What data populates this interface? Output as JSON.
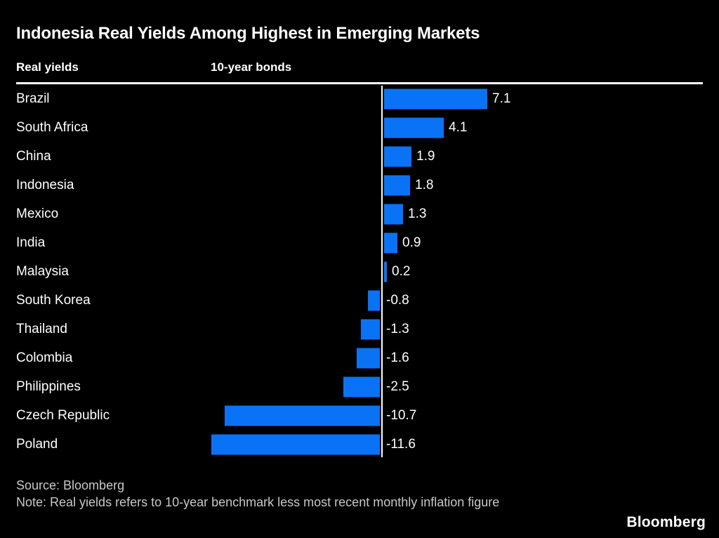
{
  "page": {
    "title": "Indonesia Real Yields Among Highest in Emerging Markets",
    "subtitle_left": "Real yields",
    "subtitle_right": "10-year bonds"
  },
  "chart_data": {
    "type": "bar",
    "orientation": "horizontal",
    "title": "Indonesia Real Yields Among Highest in Emerging Markets",
    "categories": [
      "Brazil",
      "South Africa",
      "China",
      "Indonesia",
      "Mexico",
      "India",
      "Malaysia",
      "South Korea",
      "Thailand",
      "Colombia",
      "Philippines",
      "Czech Republic",
      "Poland"
    ],
    "values": [
      7.1,
      4.1,
      1.9,
      1.8,
      1.3,
      0.9,
      0.2,
      -0.8,
      -1.3,
      -1.6,
      -2.5,
      -10.7,
      -11.6
    ],
    "value_labels": [
      "7.1",
      "4.1",
      "1.9",
      "1.8",
      "1.3",
      "0.9",
      "0.2",
      "-0.8",
      "-1.3",
      "-1.6",
      "-2.5",
      "-10.7",
      "-11.6"
    ],
    "xlim": [
      -11.6,
      7.1
    ],
    "baseline": 0,
    "grid": false,
    "legend": null,
    "bar_color": "#0a73f5"
  },
  "footer": {
    "source": "Source: Bloomberg",
    "note": "Note: Real yields refers to 10-year benchmark less most recent monthly inflation figure",
    "logo": "Bloomberg"
  },
  "colors": {
    "background": "#000000",
    "text": "#ffffff",
    "muted_text": "#c8c8c8",
    "bar": "#0a73f5",
    "rule": "#ffffff"
  }
}
